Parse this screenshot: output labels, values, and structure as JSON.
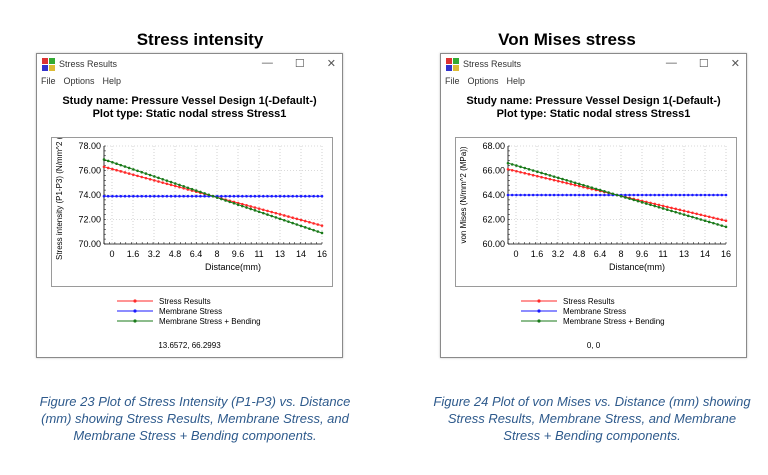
{
  "panels": [
    {
      "heading": "Stress intensity",
      "window_title": "Stress Results",
      "menu": [
        "File",
        "Options",
        "Help"
      ],
      "study_line1": "Study name: Pressure Vessel Design 1(-Default-)",
      "study_line2": "Plot type: Static nodal stress Stress1",
      "coord_readout": "13.6572, 66.2993",
      "caption": "Figure 23 Plot of Stress Intensity (P1-P3) vs. Distance (mm) showing Stress Results, Membrane Stress, and Membrane Stress + Bending components."
    },
    {
      "heading": "Von Mises stress",
      "window_title": "Stress Results",
      "menu": [
        "File",
        "Options",
        "Help"
      ],
      "study_line1": "Study name: Pressure Vessel Design 1(-Default-)",
      "study_line2": "Plot type: Static nodal stress Stress1",
      "coord_readout": "0, 0",
      "caption": "Figure 24 Plot of von Mises vs. Distance (mm) showing Stress Results, Membrane Stress, and Membrane Stress + Bending components."
    }
  ],
  "window_controls": [
    "—",
    "☐",
    "✕"
  ],
  "colors": {
    "stress": "#ff2a2a",
    "membrane": "#1a1aff",
    "bending": "#1a7a1a",
    "caption": "#2e5a8c"
  },
  "chart_data": [
    {
      "type": "line",
      "xlabel": "Distance(mm)",
      "ylabel": "Stress intensity (P1-P3) (N/mm^2 (M",
      "xlim": [
        0,
        16.8
      ],
      "ylim": [
        70.0,
        78.0
      ],
      "xticks": [
        "0",
        "1.6",
        "3.2",
        "4.8",
        "6.4",
        "8",
        "9.6",
        "11",
        "13",
        "14",
        "16"
      ],
      "yticks": [
        "70.00",
        "72.00",
        "74.00",
        "76.00",
        "78.00"
      ],
      "grid": true,
      "legend_position": "bottom",
      "series": [
        {
          "name": "Stress Results",
          "key": "stress",
          "x": [
            0,
            16.8
          ],
          "y": [
            76.3,
            71.5
          ]
        },
        {
          "name": "Membrane Stress",
          "key": "membrane",
          "x": [
            0,
            16.8
          ],
          "y": [
            73.9,
            73.9
          ]
        },
        {
          "name": "Membrane Stress + Bending",
          "key": "bending",
          "x": [
            0,
            16.8
          ],
          "y": [
            76.9,
            70.9
          ]
        }
      ]
    },
    {
      "type": "line",
      "xlabel": "Distance(mm)",
      "ylabel": "von Mises (N/mm^2 (MPa))",
      "xlim": [
        0,
        16.8
      ],
      "ylim": [
        60.0,
        68.0
      ],
      "xticks": [
        "0",
        "1.6",
        "3.2",
        "4.8",
        "6.4",
        "8",
        "9.6",
        "11",
        "13",
        "14",
        "16"
      ],
      "yticks": [
        "60.00",
        "62.00",
        "64.00",
        "66.00",
        "68.00"
      ],
      "grid": true,
      "legend_position": "bottom",
      "series": [
        {
          "name": "Stress Results",
          "key": "stress",
          "x": [
            0,
            16.8
          ],
          "y": [
            66.1,
            61.9
          ]
        },
        {
          "name": "Membrane Stress",
          "key": "membrane",
          "x": [
            0,
            16.8
          ],
          "y": [
            64.0,
            64.0
          ]
        },
        {
          "name": "Membrane Stress + Bending",
          "key": "bending",
          "x": [
            0,
            16.8
          ],
          "y": [
            66.6,
            61.4
          ]
        }
      ]
    }
  ]
}
